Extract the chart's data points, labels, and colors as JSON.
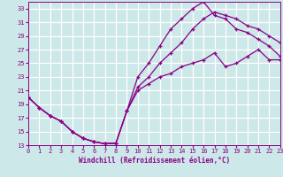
{
  "xlabel": "Windchill (Refroidissement éolien,°C)",
  "background_color": "#cde8e8",
  "grid_color": "#b8d8d8",
  "line_color": "#880088",
  "xlim": [
    0,
    23
  ],
  "ylim": [
    13,
    34
  ],
  "xticks": [
    0,
    1,
    2,
    3,
    4,
    5,
    6,
    7,
    8,
    9,
    10,
    11,
    12,
    13,
    14,
    15,
    16,
    17,
    18,
    19,
    20,
    21,
    22,
    23
  ],
  "yticks": [
    13,
    15,
    17,
    19,
    21,
    23,
    25,
    27,
    29,
    31,
    33
  ],
  "curve1_x": [
    0,
    1,
    2,
    3,
    4,
    5,
    6,
    7,
    8,
    9,
    10,
    11,
    12,
    13,
    14,
    15,
    16,
    17,
    18,
    19,
    20,
    21,
    22,
    23
  ],
  "curve1_y": [
    20.0,
    18.5,
    17.3,
    16.5,
    15.0,
    14.0,
    13.5,
    13.2,
    13.3,
    18.0,
    21.0,
    22.0,
    23.0,
    23.5,
    24.5,
    25.0,
    25.5,
    26.5,
    24.5,
    25.0,
    26.0,
    27.0,
    25.5,
    25.5
  ],
  "curve2_x": [
    0,
    1,
    2,
    3,
    4,
    5,
    6,
    7,
    8,
    9,
    10,
    11,
    12,
    13,
    14,
    15,
    16,
    17,
    18,
    19,
    20,
    21,
    22,
    23
  ],
  "curve2_y": [
    20.0,
    18.5,
    17.3,
    16.5,
    15.0,
    14.0,
    13.5,
    13.2,
    13.3,
    18.0,
    23.0,
    25.0,
    27.5,
    30.0,
    31.5,
    33.0,
    34.0,
    32.0,
    31.5,
    30.0,
    29.5,
    28.5,
    27.5,
    26.0
  ],
  "curve3_x": [
    0,
    1,
    2,
    3,
    4,
    5,
    6,
    7,
    8,
    9,
    10,
    11,
    12,
    13,
    14,
    15,
    16,
    17,
    18,
    19,
    20,
    21,
    22,
    23
  ],
  "curve3_y": [
    20.0,
    18.5,
    17.3,
    16.5,
    15.0,
    14.0,
    13.5,
    13.2,
    13.3,
    18.0,
    21.5,
    23.0,
    25.0,
    26.5,
    28.0,
    30.0,
    31.5,
    32.5,
    32.0,
    31.5,
    30.5,
    30.0,
    29.0,
    28.0
  ]
}
